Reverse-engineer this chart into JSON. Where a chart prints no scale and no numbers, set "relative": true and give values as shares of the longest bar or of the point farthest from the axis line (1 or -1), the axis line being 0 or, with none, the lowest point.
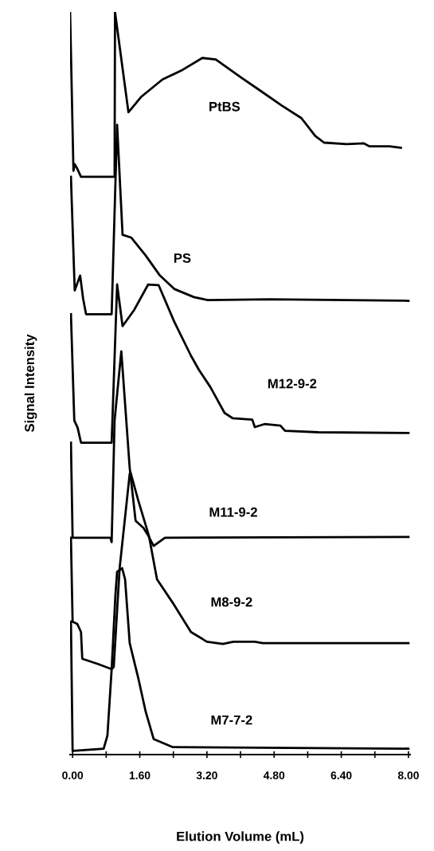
{
  "chart_data": {
    "type": "line",
    "relative": true,
    "xlabel": "Elution Volume (mL)",
    "ylabel": "Signal Intensity",
    "xlim": [
      -0.06,
      8.04
    ],
    "xticks": [
      {
        "value": 0,
        "label": "0.00"
      },
      {
        "value": 0.8,
        "label": null
      },
      {
        "value": 1.6,
        "label": "1.60"
      },
      {
        "value": 2.4,
        "label": null
      },
      {
        "value": 3.2,
        "label": "3.20"
      },
      {
        "value": 4.0,
        "label": null
      },
      {
        "value": 4.8,
        "label": "4.80"
      },
      {
        "value": 5.6,
        "label": null
      },
      {
        "value": 6.4,
        "label": "6.40"
      },
      {
        "value": 7.2,
        "label": null
      },
      {
        "value": 8.0,
        "label": "8.00"
      }
    ],
    "tick_labels": "x",
    "grid": false,
    "legend": false,
    "marker": "none",
    "line_style": "solid",
    "series": [
      {
        "name": "PtBS",
        "color": "#000000",
        "x": [
          -0.06,
          0.02,
          0.05,
          0.1,
          0.2,
          1.0,
          1.01,
          1.33,
          1.64,
          2.14,
          2.62,
          3.09,
          3.41,
          4.03,
          4.47,
          4.98,
          5.45,
          5.78,
          5.99,
          6.53,
          6.94,
          7.07,
          7.55,
          7.82
        ],
        "values": [
          1.0,
          0.786,
          0.795,
          0.79,
          0.778,
          0.778,
          1.0,
          0.865,
          0.886,
          0.909,
          0.922,
          0.938,
          0.936,
          0.911,
          0.894,
          0.874,
          0.857,
          0.833,
          0.824,
          0.822,
          0.823,
          0.819,
          0.819,
          0.817
        ]
      },
      {
        "name": "PS",
        "color": "#000000",
        "x": [
          -0.04,
          0.05,
          0.18,
          0.25,
          0.32,
          0.93,
          1.06,
          1.19,
          1.4,
          1.74,
          2.08,
          2.42,
          2.89,
          3.22,
          4.7,
          8.0
        ],
        "values": [
          0.778,
          0.625,
          0.645,
          0.614,
          0.593,
          0.593,
          0.848,
          0.7,
          0.696,
          0.672,
          0.645,
          0.627,
          0.616,
          0.612,
          0.613,
          0.611
        ]
      },
      {
        "name": "M12-9-2",
        "color": "#000000",
        "x": [
          -0.04,
          0.04,
          0.12,
          0.2,
          0.93,
          1.06,
          1.19,
          1.47,
          1.8,
          2.05,
          2.42,
          2.82,
          3.01,
          3.28,
          3.62,
          3.81,
          4.28,
          4.34,
          4.57,
          4.95,
          5.06,
          5.86,
          8.0
        ],
        "values": [
          0.593,
          0.45,
          0.44,
          0.42,
          0.42,
          0.633,
          0.577,
          0.599,
          0.633,
          0.632,
          0.583,
          0.537,
          0.518,
          0.495,
          0.46,
          0.453,
          0.451,
          0.441,
          0.445,
          0.443,
          0.436,
          0.434,
          0.433
        ]
      },
      {
        "name": "M11-9-2",
        "color": "#000000",
        "x": [
          -0.04,
          0.0,
          0.9,
          0.93,
          1.0,
          1.16,
          1.36,
          1.5,
          1.69,
          1.78,
          1.93,
          2.2,
          8.0
        ],
        "values": [
          0.42,
          0.292,
          0.292,
          0.286,
          0.45,
          0.543,
          0.386,
          0.315,
          0.305,
          0.297,
          0.281,
          0.292,
          0.293
        ]
      },
      {
        "name": "M8-9-2",
        "color": "#000000",
        "x": [
          -0.04,
          0.0,
          0.11,
          0.2,
          0.23,
          0.6,
          0.93,
          0.98,
          1.12,
          1.36,
          1.38,
          1.56,
          1.82,
          2.01,
          2.39,
          2.82,
          3.2,
          3.58,
          3.83,
          4.34,
          4.53,
          8.0
        ],
        "values": [
          0.292,
          0.179,
          0.176,
          0.165,
          0.129,
          0.122,
          0.115,
          0.118,
          0.251,
          0.378,
          0.38,
          0.343,
          0.294,
          0.236,
          0.204,
          0.165,
          0.152,
          0.149,
          0.152,
          0.152,
          0.15,
          0.15
        ]
      },
      {
        "name": "M7-7-2",
        "color": "#000000",
        "x": [
          -0.04,
          0.0,
          0.74,
          0.83,
          0.93,
          1.02,
          1.06,
          1.18,
          1.25,
          1.36,
          1.56,
          1.74,
          1.93,
          2.39,
          8.0
        ],
        "values": [
          0.179,
          0.005,
          0.008,
          0.026,
          0.115,
          0.215,
          0.246,
          0.251,
          0.236,
          0.15,
          0.104,
          0.058,
          0.021,
          0.01,
          0.008
        ]
      }
    ]
  }
}
